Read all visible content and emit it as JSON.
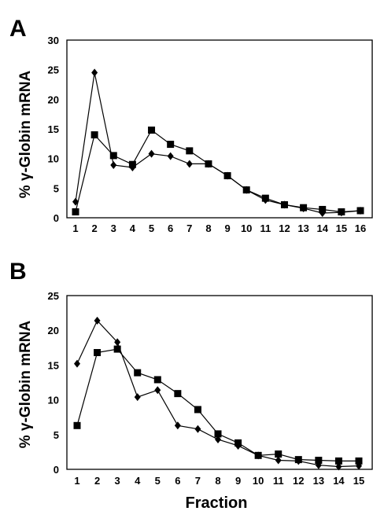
{
  "figure": {
    "xlabel": "Fraction"
  },
  "chart_data": [
    {
      "panel": "A",
      "type": "line",
      "ylabel": "% γ-Globin mRNA",
      "xlabel": "",
      "ylim": [
        0,
        30
      ],
      "yticks": [
        0,
        5,
        10,
        15,
        20,
        25,
        30
      ],
      "x": [
        1,
        2,
        3,
        4,
        5,
        6,
        7,
        8,
        9,
        10,
        11,
        12,
        13,
        14,
        15,
        16
      ],
      "grid": false,
      "series": [
        {
          "marker": "diamond",
          "values": [
            2.7,
            24.5,
            8.9,
            8.5,
            10.8,
            10.4,
            9.1,
            9.1,
            7.1,
            4.7,
            3.0,
            2.2,
            1.6,
            0.8,
            0.9,
            1.2
          ]
        },
        {
          "marker": "square",
          "values": [
            1.0,
            14.0,
            10.5,
            9.0,
            14.8,
            12.4,
            11.3,
            9.1,
            7.1,
            4.7,
            3.3,
            2.2,
            1.7,
            1.4,
            1.0,
            1.2
          ]
        }
      ]
    },
    {
      "panel": "B",
      "type": "line",
      "ylabel": "% γ-Globin mRNA",
      "xlabel": "Fraction",
      "ylim": [
        0,
        25
      ],
      "yticks": [
        0,
        5,
        10,
        15,
        20,
        25
      ],
      "x": [
        1,
        2,
        3,
        4,
        5,
        6,
        7,
        8,
        9,
        10,
        11,
        12,
        13,
        14,
        15
      ],
      "grid": false,
      "series": [
        {
          "marker": "diamond",
          "values": [
            15.2,
            21.4,
            18.3,
            10.4,
            11.4,
            6.3,
            5.8,
            4.3,
            3.4,
            2.0,
            1.3,
            1.2,
            0.6,
            0.4,
            0.5
          ]
        },
        {
          "marker": "square",
          "values": [
            6.3,
            16.8,
            17.3,
            13.9,
            12.9,
            10.9,
            8.6,
            5.1,
            3.8,
            2.0,
            2.2,
            1.4,
            1.3,
            1.2,
            1.2
          ]
        }
      ]
    }
  ]
}
